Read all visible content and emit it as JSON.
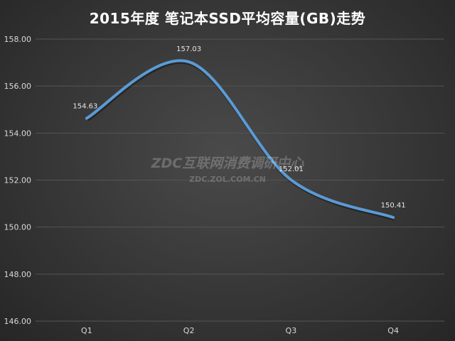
{
  "chart_data": {
    "type": "line",
    "title": "2015年度 笔记本SSD平均容量(GB)走势",
    "categories": [
      "Q1",
      "Q2",
      "Q3",
      "Q4"
    ],
    "values": [
      154.63,
      157.03,
      152.01,
      150.41
    ],
    "data_labels": [
      "154.63",
      "157.03",
      "152.01",
      "150.41"
    ],
    "ylim": [
      146,
      158
    ],
    "yticks": [
      "146.00",
      "148.00",
      "150.00",
      "152.00",
      "154.00",
      "156.00",
      "158.00"
    ],
    "smooth": true,
    "grid": true,
    "line_color": "#5b9bd5",
    "grid_color": "#555555"
  },
  "watermark": {
    "main": "ZDC互联网消费调研中心",
    "sub": "ZDC.ZOL.COM.CN"
  }
}
